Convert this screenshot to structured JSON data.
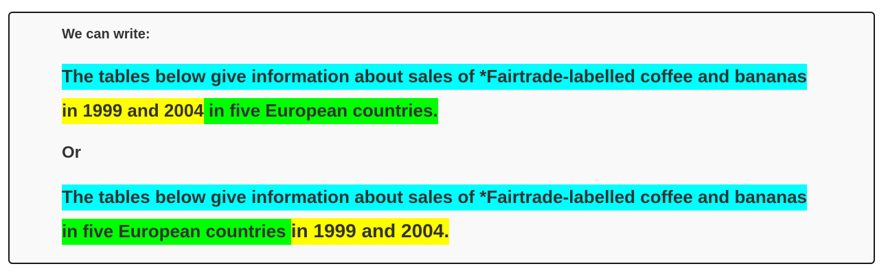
{
  "intro": "We can write:",
  "sentence1": {
    "part_subject": "The tables below give information about sales of *Fairtrade-labelled coffee and bananas",
    "part_time": " in 1999 and 2004",
    "part_place": " in five European countries."
  },
  "separator": "Or",
  "sentence2": {
    "part_subject": "The tables below give information about sales of *Fairtrade-labelled coffee and bananas",
    "part_place": " in five European countries ",
    "part_time": "in 1999 and 2004."
  },
  "colors": {
    "subject_highlight": "#00ffff",
    "time_highlight": "#ffff00",
    "place_highlight": "#00ff00",
    "text": "#333333",
    "panel_background": "#f9f9f9",
    "panel_border": "#1a1a1a"
  }
}
